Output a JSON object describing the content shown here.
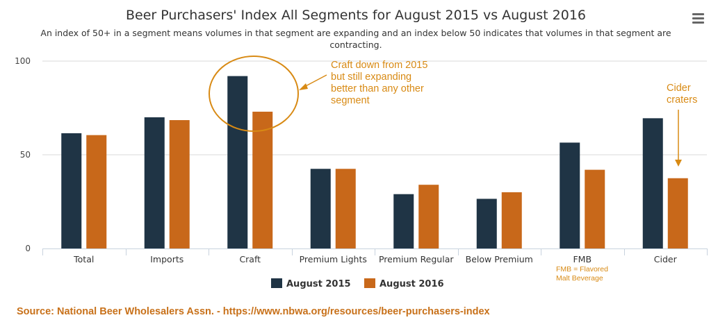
{
  "chart_data": {
    "type": "bar",
    "title": "Beer Purchasers' Index All Segments for August 2015 vs August 2016",
    "subtitle": [
      "An index of 50+ in a segment means volumes in that segment are expanding and an index below 50 indicates that volumes in that segment are",
      "contracting."
    ],
    "categories": [
      "Total",
      "Imports",
      "Craft",
      "Premium Lights",
      "Premium Regular",
      "Below Premium",
      "FMB",
      "Cider"
    ],
    "series": [
      {
        "name": "August 2015",
        "values": [
          61.5,
          70,
          92,
          42.5,
          29,
          26.5,
          56.5,
          69.5
        ],
        "color": "#1f3445"
      },
      {
        "name": "August 2016",
        "values": [
          60.5,
          68.5,
          73,
          42.5,
          34,
          30,
          42,
          37.5
        ],
        "color": "#c8681a"
      }
    ],
    "ylim": [
      0,
      100
    ],
    "yticks": [
      0,
      50,
      100
    ],
    "grid": true,
    "legend_position": "bottom-center",
    "annotations": {
      "craft": [
        "Craft down from 2015",
        "but still expanding",
        "better than any other",
        "segment"
      ],
      "cider": [
        "Cider",
        "craters"
      ],
      "fmb_note": [
        "FMB = Flavored",
        "Malt Beverage"
      ]
    },
    "annotation_color": "#d88a14"
  },
  "source": "Source: National Beer Wholesalers Assn. - https://www.nbwa.org/resources/beer-purchasers-index",
  "menu_icon": "hamburger-menu-icon"
}
